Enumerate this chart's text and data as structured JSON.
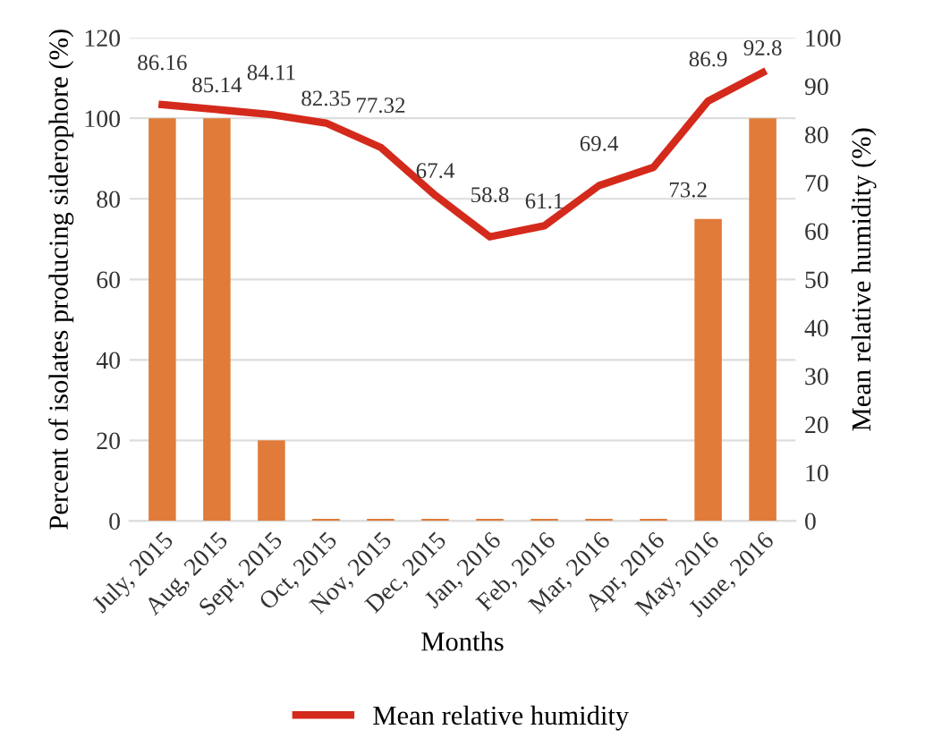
{
  "chart_data": {
    "type": "bar",
    "xlabel": "Months",
    "ylabel": "Percent of isolates producing siderophore (%)",
    "y2label": "Mean relative humidity (%)",
    "categories": [
      "July, 2015",
      "Aug, 2015",
      "Sept, 2015",
      "Oct, 2015",
      "Nov, 2015",
      "Dec, 2015",
      "Jan, 2016",
      "Feb, 2016",
      "Mar, 2016",
      "Apr, 2016",
      "May, 2016",
      "June, 2016"
    ],
    "series": [
      {
        "color": "#e07b39",
        "values": [
          100,
          100,
          20,
          0.5,
          0.5,
          0.5,
          0.5,
          0.5,
          0.5,
          0.5,
          75,
          100
        ]
      },
      {
        "type": "line",
        "name": "Mean relative humidity",
        "axis": "y2",
        "color": "#d42a1c",
        "values": [
          86.16,
          85.14,
          84.11,
          82.35,
          77.32,
          67.4,
          58.8,
          61.1,
          69.4,
          73.2,
          86.9,
          92.8
        ],
        "value_labels": [
          "86.16",
          "85.14",
          "84.11",
          "82.35",
          "77.32",
          "67.4",
          "58.8",
          "61.1",
          "69.4",
          "73.2",
          "86.9",
          "92.8"
        ]
      }
    ],
    "ylim": [
      0,
      120
    ],
    "yticks": [
      0,
      20,
      40,
      60,
      80,
      100,
      120
    ],
    "y2lim": [
      0,
      100
    ],
    "y2ticks": [
      0,
      10,
      20,
      30,
      40,
      50,
      60,
      70,
      80,
      90,
      100
    ],
    "grid": "y",
    "legend": "bottom",
    "marker": "none",
    "line_style": "solid"
  }
}
